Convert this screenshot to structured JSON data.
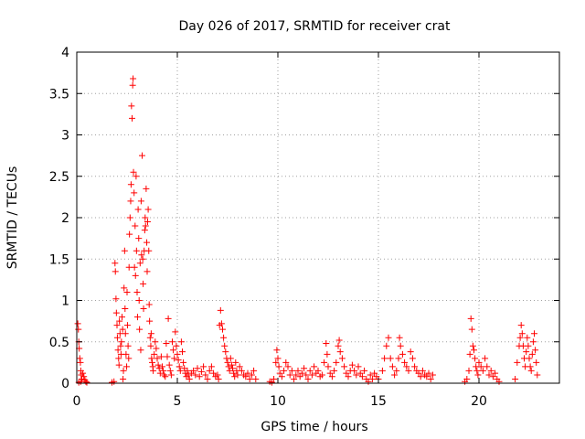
{
  "chart_data": {
    "type": "scatter",
    "title": "Day 026 of 2017, SRMTID for receiver crat",
    "xlabel": "GPS time / hours",
    "ylabel": "SRMTID / TECUs",
    "xlim": [
      0,
      24
    ],
    "ylim": [
      0,
      4
    ],
    "x_ticks": [
      0,
      5,
      10,
      15,
      20
    ],
    "x_tick_labels": [
      "0",
      "5",
      "10",
      "15",
      "20"
    ],
    "y_ticks": [
      0,
      0.5,
      1,
      1.5,
      2,
      2.5,
      3,
      3.5,
      4
    ],
    "y_tick_labels": [
      "0",
      "0.5",
      "1",
      "1.5",
      "2",
      "2.5",
      "3",
      "3.5",
      "4"
    ],
    "grid": true,
    "marker": "+",
    "series": [
      {
        "name": "SRMTID",
        "color": "#ff0000",
        "points": [
          [
            0.05,
            0.72
          ],
          [
            0.08,
            0.65
          ],
          [
            0.1,
            0.5
          ],
          [
            0.12,
            0.42
          ],
          [
            0.15,
            0.3
          ],
          [
            0.18,
            0.25
          ],
          [
            0.2,
            0.15
          ],
          [
            0.22,
            0.1
          ],
          [
            0.25,
            0.05
          ],
          [
            0.3,
            0.12
          ],
          [
            0.35,
            0.08
          ],
          [
            0.4,
            0.04
          ],
          [
            0.45,
            0.02
          ],
          [
            0.5,
            0.01
          ],
          [
            0.1,
            0.01
          ],
          [
            0.2,
            0.02
          ],
          [
            1.75,
            0.01
          ],
          [
            1.85,
            0.02
          ],
          [
            1.9,
            1.45
          ],
          [
            1.92,
            1.35
          ],
          [
            1.95,
            1.02
          ],
          [
            1.97,
            0.85
          ],
          [
            2.0,
            0.7
          ],
          [
            2.02,
            0.55
          ],
          [
            2.05,
            0.4
          ],
          [
            2.08,
            0.3
          ],
          [
            2.1,
            0.22
          ],
          [
            2.12,
            0.75
          ],
          [
            2.15,
            0.6
          ],
          [
            2.18,
            0.45
          ],
          [
            2.2,
            0.35
          ],
          [
            2.22,
            0.5
          ],
          [
            2.25,
            0.8
          ],
          [
            2.28,
            0.65
          ],
          [
            2.3,
            0.05
          ],
          [
            2.32,
            0.15
          ],
          [
            2.35,
            1.15
          ],
          [
            2.38,
            1.6
          ],
          [
            2.4,
            0.9
          ],
          [
            2.42,
            0.6
          ],
          [
            2.45,
            0.35
          ],
          [
            2.48,
            0.2
          ],
          [
            2.5,
            1.1
          ],
          [
            2.52,
            0.7
          ],
          [
            2.55,
            0.45
          ],
          [
            2.58,
            0.3
          ],
          [
            2.6,
            1.4
          ],
          [
            2.62,
            1.8
          ],
          [
            2.65,
            2.0
          ],
          [
            2.68,
            2.2
          ],
          [
            2.7,
            2.4
          ],
          [
            2.72,
            3.35
          ],
          [
            2.75,
            3.2
          ],
          [
            2.78,
            3.6
          ],
          [
            2.8,
            3.68
          ],
          [
            2.82,
            2.55
          ],
          [
            2.85,
            2.3
          ],
          [
            2.87,
            1.4
          ],
          [
            2.9,
            1.9
          ],
          [
            2.92,
            1.3
          ],
          [
            2.95,
            2.5
          ],
          [
            2.97,
            1.6
          ],
          [
            3.0,
            1.1
          ],
          [
            3.02,
            0.8
          ],
          [
            3.05,
            2.1
          ],
          [
            3.08,
            1.75
          ],
          [
            3.1,
            1.0
          ],
          [
            3.12,
            0.65
          ],
          [
            3.15,
            1.45
          ],
          [
            3.18,
            0.4
          ],
          [
            3.2,
            2.2
          ],
          [
            3.22,
            1.55
          ],
          [
            3.25,
            2.75
          ],
          [
            3.28,
            1.5
          ],
          [
            3.3,
            1.2
          ],
          [
            3.32,
            0.9
          ],
          [
            3.35,
            1.6
          ],
          [
            3.38,
            1.85
          ],
          [
            3.4,
            2.0
          ],
          [
            3.42,
            1.9
          ],
          [
            3.45,
            2.35
          ],
          [
            3.48,
            1.7
          ],
          [
            3.5,
            1.35
          ],
          [
            3.52,
            1.95
          ],
          [
            3.55,
            2.1
          ],
          [
            3.58,
            1.6
          ],
          [
            3.6,
            0.95
          ],
          [
            3.62,
            0.75
          ],
          [
            3.65,
            0.55
          ],
          [
            3.68,
            0.45
          ],
          [
            3.7,
            0.6
          ],
          [
            3.72,
            0.3
          ],
          [
            3.75,
            0.25
          ],
          [
            3.78,
            0.2
          ],
          [
            3.8,
            0.15
          ],
          [
            3.85,
            0.35
          ],
          [
            3.9,
            0.5
          ],
          [
            3.95,
            0.42
          ],
          [
            4.0,
            0.3
          ],
          [
            4.05,
            0.22
          ],
          [
            4.1,
            0.18
          ],
          [
            4.15,
            0.12
          ],
          [
            4.2,
            0.32
          ],
          [
            4.25,
            0.2
          ],
          [
            4.3,
            0.15
          ],
          [
            4.35,
            0.1
          ],
          [
            4.4,
            0.08
          ],
          [
            4.45,
            0.48
          ],
          [
            4.5,
            0.32
          ],
          [
            4.55,
            0.78
          ],
          [
            4.6,
            0.22
          ],
          [
            4.65,
            0.15
          ],
          [
            4.7,
            0.1
          ],
          [
            4.75,
            0.5
          ],
          [
            4.8,
            0.4
          ],
          [
            4.85,
            0.3
          ],
          [
            4.9,
            0.62
          ],
          [
            4.95,
            0.45
          ],
          [
            5.0,
            0.35
          ],
          [
            5.05,
            0.28
          ],
          [
            5.1,
            0.2
          ],
          [
            5.15,
            0.15
          ],
          [
            5.2,
            0.5
          ],
          [
            5.25,
            0.38
          ],
          [
            5.3,
            0.25
          ],
          [
            5.35,
            0.18
          ],
          [
            5.4,
            0.12
          ],
          [
            5.45,
            0.08
          ],
          [
            5.5,
            0.15
          ],
          [
            5.55,
            0.1
          ],
          [
            5.6,
            0.05
          ],
          [
            5.7,
            0.12
          ],
          [
            5.8,
            0.15
          ],
          [
            5.9,
            0.1
          ],
          [
            6.0,
            0.18
          ],
          [
            6.1,
            0.08
          ],
          [
            6.2,
            0.14
          ],
          [
            6.3,
            0.2
          ],
          [
            6.4,
            0.1
          ],
          [
            6.5,
            0.05
          ],
          [
            6.6,
            0.15
          ],
          [
            6.7,
            0.2
          ],
          [
            6.8,
            0.12
          ],
          [
            6.9,
            0.08
          ],
          [
            7.0,
            0.1
          ],
          [
            7.05,
            0.05
          ],
          [
            7.1,
            0.7
          ],
          [
            7.15,
            0.88
          ],
          [
            7.2,
            0.72
          ],
          [
            7.25,
            0.65
          ],
          [
            7.3,
            0.55
          ],
          [
            7.35,
            0.45
          ],
          [
            7.4,
            0.38
          ],
          [
            7.45,
            0.3
          ],
          [
            7.5,
            0.25
          ],
          [
            7.55,
            0.2
          ],
          [
            7.6,
            0.15
          ],
          [
            7.65,
            0.3
          ],
          [
            7.7,
            0.22
          ],
          [
            7.75,
            0.18
          ],
          [
            7.8,
            0.12
          ],
          [
            7.85,
            0.08
          ],
          [
            7.9,
            0.25
          ],
          [
            7.95,
            0.15
          ],
          [
            8.0,
            0.1
          ],
          [
            8.1,
            0.2
          ],
          [
            8.2,
            0.15
          ],
          [
            8.3,
            0.1
          ],
          [
            8.4,
            0.08
          ],
          [
            8.5,
            0.12
          ],
          [
            8.6,
            0.05
          ],
          [
            8.7,
            0.1
          ],
          [
            8.8,
            0.15
          ],
          [
            8.9,
            0.05
          ],
          [
            9.6,
            0.02
          ],
          [
            9.7,
            0.01
          ],
          [
            9.8,
            0.05
          ],
          [
            9.9,
            0.25
          ],
          [
            9.95,
            0.4
          ],
          [
            10.0,
            0.3
          ],
          [
            10.05,
            0.2
          ],
          [
            10.1,
            0.12
          ],
          [
            10.2,
            0.08
          ],
          [
            10.3,
            0.15
          ],
          [
            10.4,
            0.25
          ],
          [
            10.5,
            0.2
          ],
          [
            10.6,
            0.1
          ],
          [
            10.7,
            0.15
          ],
          [
            10.8,
            0.05
          ],
          [
            10.9,
            0.1
          ],
          [
            11.0,
            0.15
          ],
          [
            11.1,
            0.08
          ],
          [
            11.2,
            0.12
          ],
          [
            11.3,
            0.18
          ],
          [
            11.4,
            0.1
          ],
          [
            11.5,
            0.05
          ],
          [
            11.6,
            0.15
          ],
          [
            11.7,
            0.1
          ],
          [
            11.8,
            0.2
          ],
          [
            11.9,
            0.12
          ],
          [
            12.0,
            0.15
          ],
          [
            12.1,
            0.08
          ],
          [
            12.2,
            0.1
          ],
          [
            12.3,
            0.25
          ],
          [
            12.4,
            0.48
          ],
          [
            12.45,
            0.35
          ],
          [
            12.5,
            0.2
          ],
          [
            12.6,
            0.12
          ],
          [
            12.7,
            0.08
          ],
          [
            12.8,
            0.15
          ],
          [
            12.9,
            0.25
          ],
          [
            13.0,
            0.45
          ],
          [
            13.05,
            0.52
          ],
          [
            13.1,
            0.38
          ],
          [
            13.2,
            0.3
          ],
          [
            13.3,
            0.2
          ],
          [
            13.4,
            0.12
          ],
          [
            13.5,
            0.08
          ],
          [
            13.6,
            0.15
          ],
          [
            13.7,
            0.22
          ],
          [
            13.8,
            0.15
          ],
          [
            13.9,
            0.1
          ],
          [
            14.0,
            0.2
          ],
          [
            14.1,
            0.12
          ],
          [
            14.2,
            0.08
          ],
          [
            14.3,
            0.15
          ],
          [
            14.4,
            0.05
          ],
          [
            14.5,
            0.02
          ],
          [
            14.6,
            0.1
          ],
          [
            14.7,
            0.05
          ],
          [
            14.8,
            0.12
          ],
          [
            14.9,
            0.08
          ],
          [
            15.0,
            0.05
          ],
          [
            15.2,
            0.15
          ],
          [
            15.3,
            0.3
          ],
          [
            15.4,
            0.45
          ],
          [
            15.5,
            0.55
          ],
          [
            15.6,
            0.3
          ],
          [
            15.7,
            0.2
          ],
          [
            15.8,
            0.1
          ],
          [
            15.9,
            0.15
          ],
          [
            16.0,
            0.3
          ],
          [
            16.05,
            0.55
          ],
          [
            16.1,
            0.45
          ],
          [
            16.2,
            0.35
          ],
          [
            16.3,
            0.25
          ],
          [
            16.4,
            0.2
          ],
          [
            16.5,
            0.15
          ],
          [
            16.6,
            0.38
          ],
          [
            16.7,
            0.3
          ],
          [
            16.8,
            0.2
          ],
          [
            16.9,
            0.15
          ],
          [
            17.0,
            0.12
          ],
          [
            17.1,
            0.08
          ],
          [
            17.2,
            0.15
          ],
          [
            17.3,
            0.1
          ],
          [
            17.4,
            0.08
          ],
          [
            17.5,
            0.12
          ],
          [
            17.6,
            0.05
          ],
          [
            17.7,
            0.1
          ],
          [
            19.3,
            0.02
          ],
          [
            19.4,
            0.05
          ],
          [
            19.5,
            0.15
          ],
          [
            19.55,
            0.35
          ],
          [
            19.6,
            0.78
          ],
          [
            19.65,
            0.65
          ],
          [
            19.7,
            0.45
          ],
          [
            19.75,
            0.4
          ],
          [
            19.8,
            0.3
          ],
          [
            19.85,
            0.2
          ],
          [
            19.9,
            0.15
          ],
          [
            19.95,
            0.1
          ],
          [
            20.0,
            0.25
          ],
          [
            20.1,
            0.2
          ],
          [
            20.2,
            0.15
          ],
          [
            20.3,
            0.3
          ],
          [
            20.4,
            0.2
          ],
          [
            20.5,
            0.1
          ],
          [
            20.6,
            0.15
          ],
          [
            20.7,
            0.08
          ],
          [
            20.8,
            0.12
          ],
          [
            20.9,
            0.05
          ],
          [
            21.0,
            0.02
          ],
          [
            21.8,
            0.05
          ],
          [
            21.9,
            0.25
          ],
          [
            22.0,
            0.45
          ],
          [
            22.05,
            0.55
          ],
          [
            22.1,
            0.7
          ],
          [
            22.15,
            0.6
          ],
          [
            22.2,
            0.45
          ],
          [
            22.25,
            0.3
          ],
          [
            22.3,
            0.2
          ],
          [
            22.35,
            0.38
          ],
          [
            22.4,
            0.55
          ],
          [
            22.45,
            0.45
          ],
          [
            22.5,
            0.3
          ],
          [
            22.55,
            0.2
          ],
          [
            22.6,
            0.15
          ],
          [
            22.65,
            0.35
          ],
          [
            22.7,
            0.5
          ],
          [
            22.75,
            0.6
          ],
          [
            22.8,
            0.4
          ],
          [
            22.85,
            0.25
          ],
          [
            22.9,
            0.1
          ]
        ]
      }
    ]
  }
}
